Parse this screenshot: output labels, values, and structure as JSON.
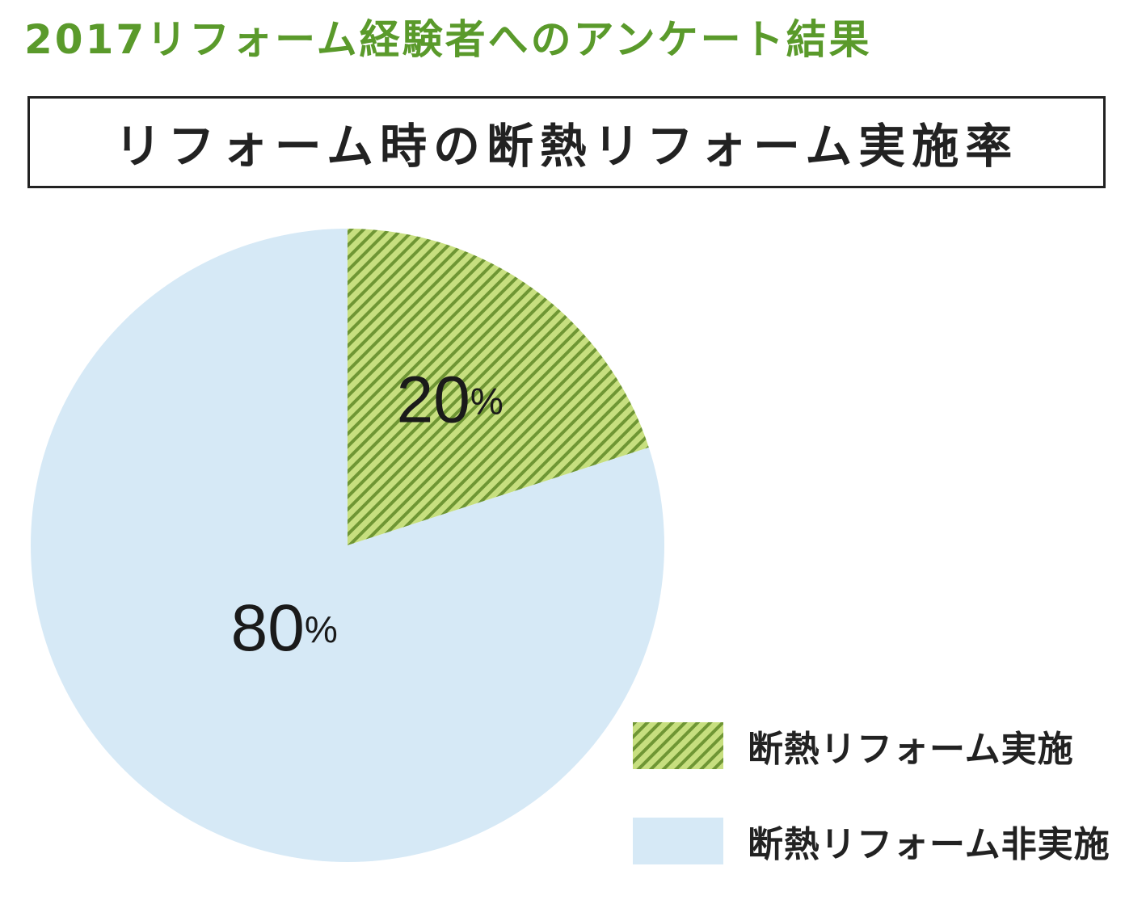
{
  "supertitle": "2017リフォーム経験者へのアンケート結果",
  "colors": {
    "supertitle": "#5a9a2b",
    "implemented_fill": "#c7df7f",
    "implemented_stripe": "#6f9634",
    "not_implemented_fill": "#d6e9f6"
  },
  "chart_data": {
    "type": "pie",
    "title": "リフォーム時の断熱リフォーム実施率",
    "slices": [
      {
        "label": "断熱リフォーム実施",
        "value": 20,
        "value_label": "20",
        "unit": "%",
        "pattern": "diagonal-stripes"
      },
      {
        "label": "断熱リフォーム非実施",
        "value": 80,
        "value_label": "80",
        "unit": "%",
        "pattern": "solid"
      }
    ],
    "start": "12 o'clock, clockwise",
    "legend_position": "bottom-right"
  }
}
